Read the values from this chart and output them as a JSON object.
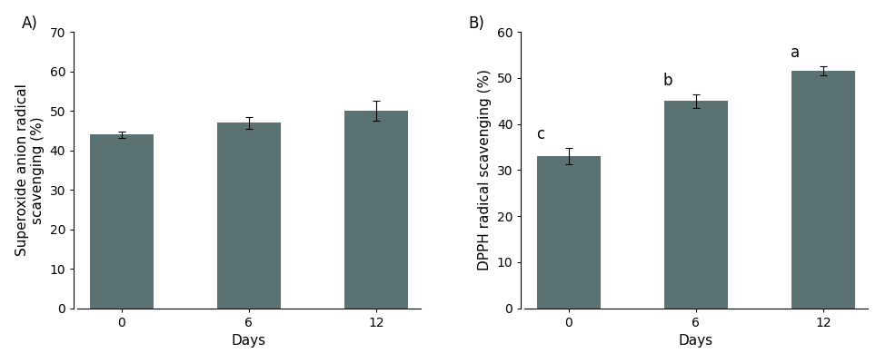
{
  "panel_A": {
    "label": "A)",
    "categories": [
      "0",
      "6",
      "12"
    ],
    "values": [
      44.0,
      47.0,
      50.0
    ],
    "errors": [
      0.8,
      1.5,
      2.5
    ],
    "ylabel": "Superoxide anion radical\nscavenging (%)",
    "xlabel": "Days",
    "ylim": [
      0,
      70
    ],
    "yticks": [
      0,
      10,
      20,
      30,
      40,
      50,
      60,
      70
    ],
    "significance": [
      "",
      "",
      ""
    ],
    "bar_color": "#5a7272",
    "bar_width": 0.5
  },
  "panel_B": {
    "label": "B)",
    "categories": [
      "0",
      "6",
      "12"
    ],
    "values": [
      33.0,
      45.0,
      51.5
    ],
    "errors": [
      1.8,
      1.5,
      1.0
    ],
    "ylabel": "DPPH radical scavenging (%)",
    "xlabel": "Days",
    "ylim": [
      0,
      60
    ],
    "yticks": [
      0,
      10,
      20,
      30,
      40,
      50,
      60
    ],
    "significance": [
      "c",
      "b",
      "a"
    ],
    "sig_offsets": [
      -0.22,
      -0.22,
      -0.22
    ],
    "bar_color": "#5a7272",
    "bar_width": 0.5
  },
  "background_color": "#ffffff",
  "tick_fontsize": 10,
  "label_fontsize": 11,
  "panel_label_fontsize": 12,
  "sig_fontsize": 12
}
